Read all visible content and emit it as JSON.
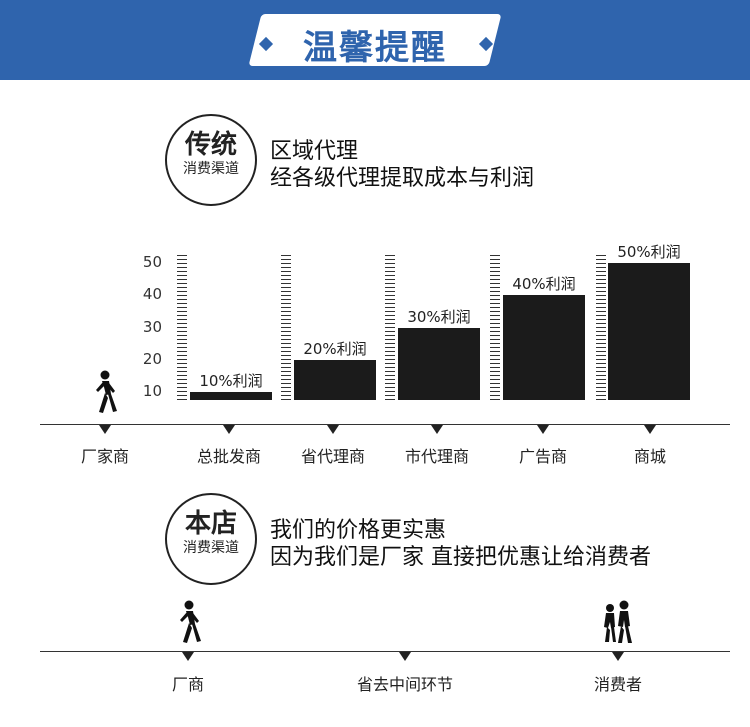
{
  "banner": {
    "title": "温馨提醒"
  },
  "traditional": {
    "circle_title": "传统",
    "circle_sub": "消费渠道",
    "line1": "区域代理",
    "line2": "经各级代理提取成本与利润"
  },
  "store": {
    "circle_title": "本店",
    "circle_sub": "消费渠道",
    "line1": "我们的价格更实惠",
    "line2": "因为我们是厂家 直接把优惠让给消费者"
  },
  "chart_data": {
    "type": "bar",
    "categories": [
      "总批发商",
      "省代理商",
      "市代理商",
      "广告商",
      "商城"
    ],
    "values": [
      10,
      20,
      30,
      40,
      50
    ],
    "data_labels": [
      "10%利润",
      "20%利润",
      "30%利润",
      "40%利润",
      "50%利润"
    ],
    "y_ticks": [
      "50",
      "40",
      "30",
      "20",
      "10"
    ],
    "ylim": [
      7.5,
      52.5
    ]
  },
  "stages_top": [
    "厂家商",
    "总批发商",
    "省代理商",
    "市代理商",
    "广告商",
    "商城"
  ],
  "stages_bottom": [
    "厂商",
    "省去中间环节",
    "消费者"
  ],
  "icons": {
    "walker": "person-walking-icon",
    "couple": "people-walking-icon"
  },
  "colors": {
    "banner": "#2f64ad",
    "bar": "#1b1b1b"
  }
}
